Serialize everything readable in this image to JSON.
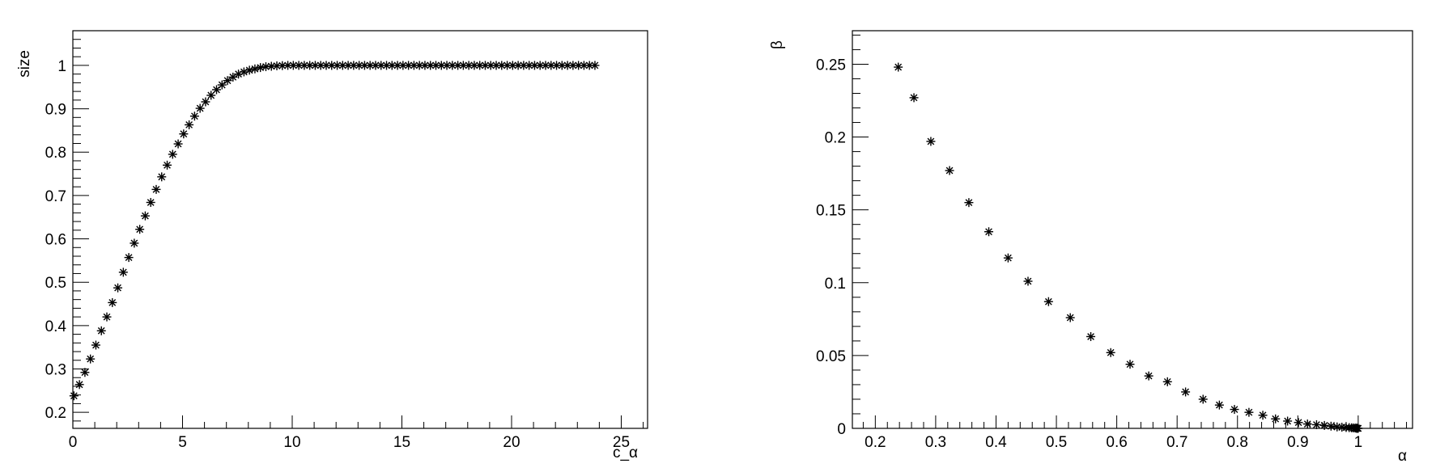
{
  "chart_data": [
    {
      "type": "scatter",
      "title": "",
      "xlabel": "c_α",
      "ylabel": "size",
      "xlim": [
        0,
        26.2
      ],
      "ylim": [
        0.163,
        1.08
      ],
      "xticks": [
        0,
        5,
        10,
        15,
        20,
        25
      ],
      "xtick_labels": [
        "0",
        "5",
        "10",
        "15",
        "20",
        "25"
      ],
      "yticks": [
        0.2,
        0.3,
        0.4,
        0.5,
        0.6,
        0.7,
        0.8,
        0.9,
        1.0
      ],
      "ytick_labels": [
        "0.2",
        "0.3",
        "0.4",
        "0.5",
        "0.6",
        "0.7",
        "0.8",
        "0.9",
        "1"
      ],
      "marker": "asterisk",
      "grid": false,
      "series": [
        {
          "x": [
            0.05,
            0.3,
            0.55,
            0.8,
            1.05,
            1.3,
            1.55,
            1.8,
            2.05,
            2.3,
            2.55,
            2.8,
            3.05,
            3.3,
            3.55,
            3.8,
            4.05,
            4.3,
            4.55,
            4.8,
            5.05,
            5.3,
            5.55,
            5.8,
            6.05,
            6.3,
            6.55,
            6.8,
            7.05,
            7.3,
            7.55,
            7.8,
            8.05,
            8.3,
            8.55,
            8.8,
            9.05,
            9.3,
            9.55,
            9.8,
            10.05,
            10.3,
            10.55,
            10.8,
            11.05,
            11.3,
            11.55,
            11.8,
            12.05,
            12.3,
            12.55,
            12.8,
            13.05,
            13.3,
            13.55,
            13.8,
            14.05,
            14.3,
            14.55,
            14.8,
            15.05,
            15.3,
            15.55,
            15.8,
            16.05,
            16.3,
            16.55,
            16.8,
            17.05,
            17.3,
            17.55,
            17.8,
            18.05,
            18.3,
            18.55,
            18.8,
            19.05,
            19.3,
            19.55,
            19.8,
            20.05,
            20.3,
            20.55,
            20.8,
            21.05,
            21.3,
            21.55,
            21.8,
            22.05,
            22.3,
            22.55,
            22.8,
            23.05,
            23.3,
            23.55,
            23.8
          ],
          "y": [
            0.238,
            0.264,
            0.292,
            0.323,
            0.355,
            0.388,
            0.42,
            0.453,
            0.487,
            0.523,
            0.557,
            0.59,
            0.622,
            0.653,
            0.684,
            0.714,
            0.743,
            0.77,
            0.795,
            0.819,
            0.842,
            0.863,
            0.883,
            0.901,
            0.916,
            0.931,
            0.944,
            0.955,
            0.965,
            0.973,
            0.98,
            0.985,
            0.989,
            0.992,
            0.995,
            0.997,
            0.998,
            0.999,
            0.9995,
            1.0,
            1.0,
            1.0,
            1.0,
            1.0,
            1.0,
            1.0,
            1.0,
            1.0,
            1.0,
            1.0,
            1.0,
            1.0,
            1.0,
            1.0,
            1.0,
            1.0,
            1.0,
            1.0,
            1.0,
            1.0,
            1.0,
            1.0,
            1.0,
            1.0,
            1.0,
            1.0,
            1.0,
            1.0,
            1.0,
            1.0,
            1.0,
            1.0,
            1.0,
            1.0,
            1.0,
            1.0,
            1.0,
            1.0,
            1.0,
            1.0,
            1.0,
            1.0,
            1.0,
            1.0,
            1.0,
            1.0,
            1.0,
            1.0,
            1.0,
            1.0,
            1.0,
            1.0,
            1.0,
            1.0,
            1.0,
            1.0
          ]
        }
      ]
    },
    {
      "type": "scatter",
      "title": "",
      "xlabel": "α",
      "ylabel": "β",
      "xlim": [
        0.162,
        1.09
      ],
      "ylim": [
        0,
        0.273
      ],
      "xticks": [
        0.2,
        0.3,
        0.4,
        0.5,
        0.6,
        0.7,
        0.8,
        0.9,
        1.0
      ],
      "xtick_labels": [
        "0.2",
        "0.3",
        "0.4",
        "0.5",
        "0.6",
        "0.7",
        "0.8",
        "0.9",
        "1"
      ],
      "yticks": [
        0,
        0.05,
        0.1,
        0.15,
        0.2,
        0.25
      ],
      "ytick_labels": [
        "0",
        "0.05",
        "0.1",
        "0.15",
        "0.2",
        "0.25"
      ],
      "marker": "asterisk",
      "grid": false,
      "series": [
        {
          "x": [
            0.238,
            0.264,
            0.292,
            0.323,
            0.355,
            0.388,
            0.42,
            0.453,
            0.487,
            0.523,
            0.557,
            0.59,
            0.622,
            0.653,
            0.684,
            0.714,
            0.743,
            0.77,
            0.795,
            0.819,
            0.842,
            0.863,
            0.883,
            0.901,
            0.916,
            0.931,
            0.944,
            0.955,
            0.965,
            0.973,
            0.98,
            0.985,
            0.989,
            0.992,
            0.995,
            0.997,
            0.998,
            0.999,
            1.0
          ],
          "y": [
            0.248,
            0.227,
            0.197,
            0.177,
            0.155,
            0.135,
            0.117,
            0.101,
            0.087,
            0.076,
            0.063,
            0.052,
            0.044,
            0.036,
            0.032,
            0.025,
            0.02,
            0.016,
            0.013,
            0.011,
            0.009,
            0.0065,
            0.005,
            0.004,
            0.003,
            0.0025,
            0.002,
            0.0015,
            0.001,
            0.0008,
            0.0006,
            0.0005,
            0.0004,
            0.0003,
            0.0002,
            0.0001,
            0.0001,
            0.0,
            0.0
          ]
        }
      ]
    }
  ]
}
